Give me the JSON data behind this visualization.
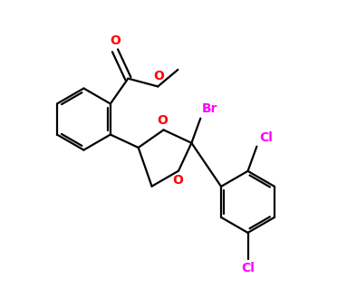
{
  "background_color": "#ffffff",
  "bond_color": "#000000",
  "O_color": "#ff0000",
  "Br_color": "#ff00ff",
  "Cl_color": "#ff00ff",
  "line_width": 1.6,
  "doff": 0.012,
  "figsize": [
    3.83,
    3.4
  ],
  "dpi": 100,
  "xlim": [
    -0.55,
    0.72
  ],
  "ylim": [
    -0.42,
    0.72
  ]
}
